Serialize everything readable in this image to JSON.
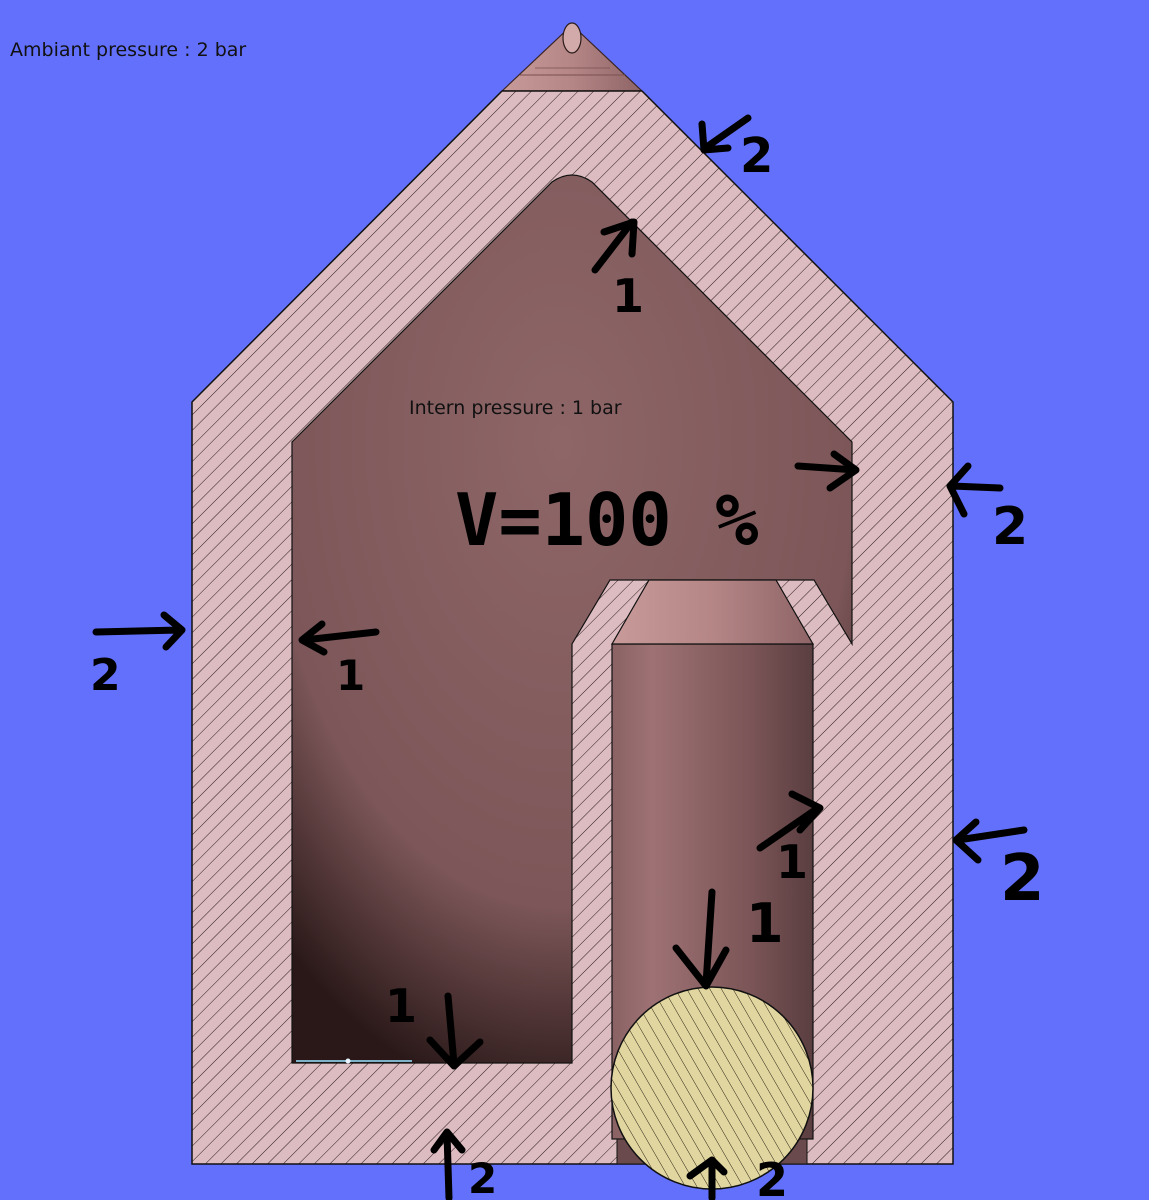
{
  "labels": {
    "ambient_pressure": "Ambiant pressure : 2 bar",
    "intern_pressure": "Intern pressure : 1 bar",
    "volume": "V=100 %"
  },
  "pressure_marks": {
    "outside": "2",
    "inside": "1"
  },
  "colors": {
    "background": "#6370fb",
    "wall": "#dcbcc0",
    "cavity": "#8a6264",
    "plug": "#e2d6a0",
    "ink": "#000000"
  }
}
